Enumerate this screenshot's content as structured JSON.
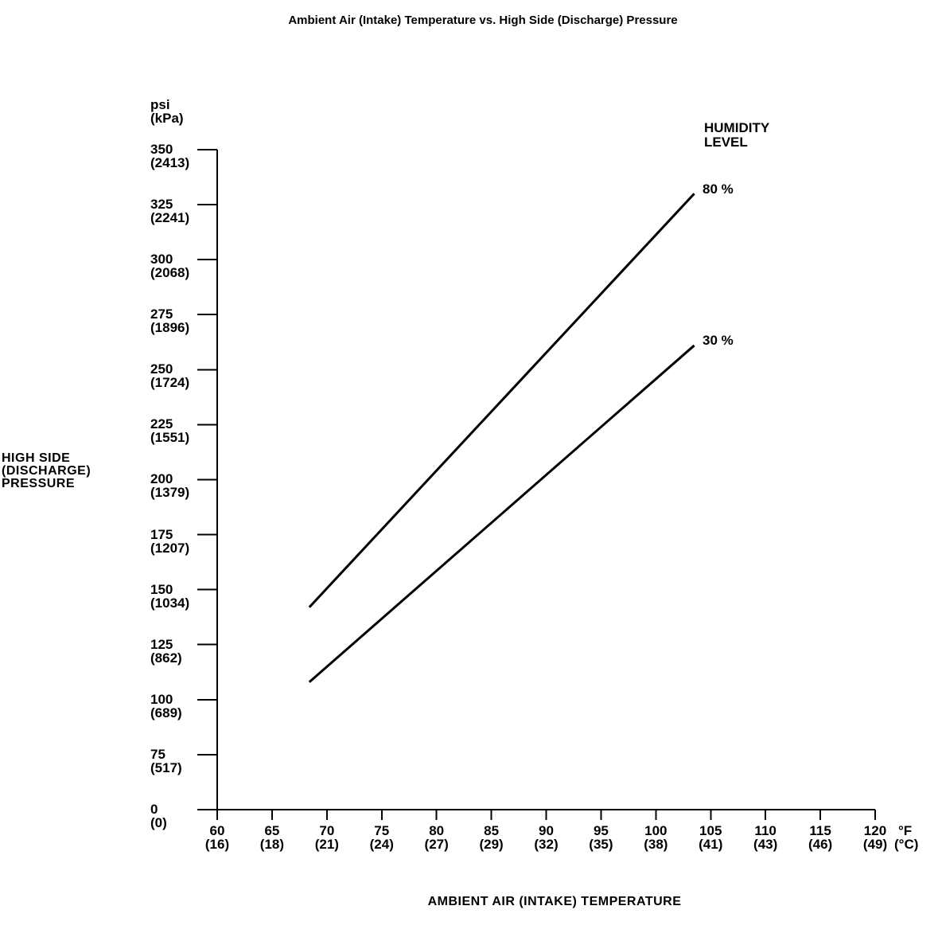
{
  "title": "Ambient Air (Intake) Temperature vs. High Side (Discharge) Pressure",
  "colors": {
    "ink": "#000000",
    "background": "#ffffff"
  },
  "y_axis": {
    "unit_primary": "psi",
    "unit_secondary": "(kPa)",
    "title_lines": [
      "HIGH SIDE",
      "(DISCHARGE)",
      "PRESSURE"
    ]
  },
  "x_axis": {
    "unit_primary": "°F",
    "unit_secondary": "(°C)",
    "title": "AMBIENT AIR (INTAKE) TEMPERATURE"
  },
  "legend": {
    "title_line1": "HUMIDITY",
    "title_line2": "LEVEL",
    "label_80": "80 %",
    "label_30": "30 %"
  },
  "chart_data": {
    "type": "line",
    "title": "Ambient Air (Intake) Temperature vs. High Side (Discharge) Pressure",
    "xlabel": "AMBIENT AIR (INTAKE) TEMPERATURE",
    "ylabel": "HIGH SIDE (DISCHARGE) PRESSURE",
    "x_unit": "°F (°C)",
    "y_unit": "psi (kPa)",
    "grid": false,
    "legend_position": "top-right",
    "legend_title": "HUMIDITY LEVEL",
    "xlim_f": [
      60,
      120
    ],
    "x_ticks_f": [
      60,
      65,
      70,
      75,
      80,
      85,
      90,
      95,
      100,
      105,
      110,
      115,
      120
    ],
    "x_ticks_c": [
      16,
      18,
      21,
      24,
      27,
      29,
      32,
      35,
      38,
      41,
      43,
      46,
      49
    ],
    "y_ticks_psi": [
      350,
      325,
      300,
      275,
      250,
      225,
      200,
      175,
      150,
      125,
      100,
      75,
      0
    ],
    "y_ticks_kpa": [
      2413,
      2241,
      2068,
      1896,
      1724,
      1551,
      1379,
      1207,
      1034,
      862,
      689,
      517,
      0
    ],
    "y_axis_break_below_psi": 75,
    "series": [
      {
        "name": "80 %",
        "humidity_percent": 80,
        "points": [
          {
            "f": 68.4,
            "psi": 142
          },
          {
            "f": 103.5,
            "psi": 330
          }
        ]
      },
      {
        "name": "30 %",
        "humidity_percent": 30,
        "points": [
          {
            "f": 68.4,
            "psi": 108
          },
          {
            "f": 103.5,
            "psi": 261
          }
        ]
      }
    ]
  }
}
